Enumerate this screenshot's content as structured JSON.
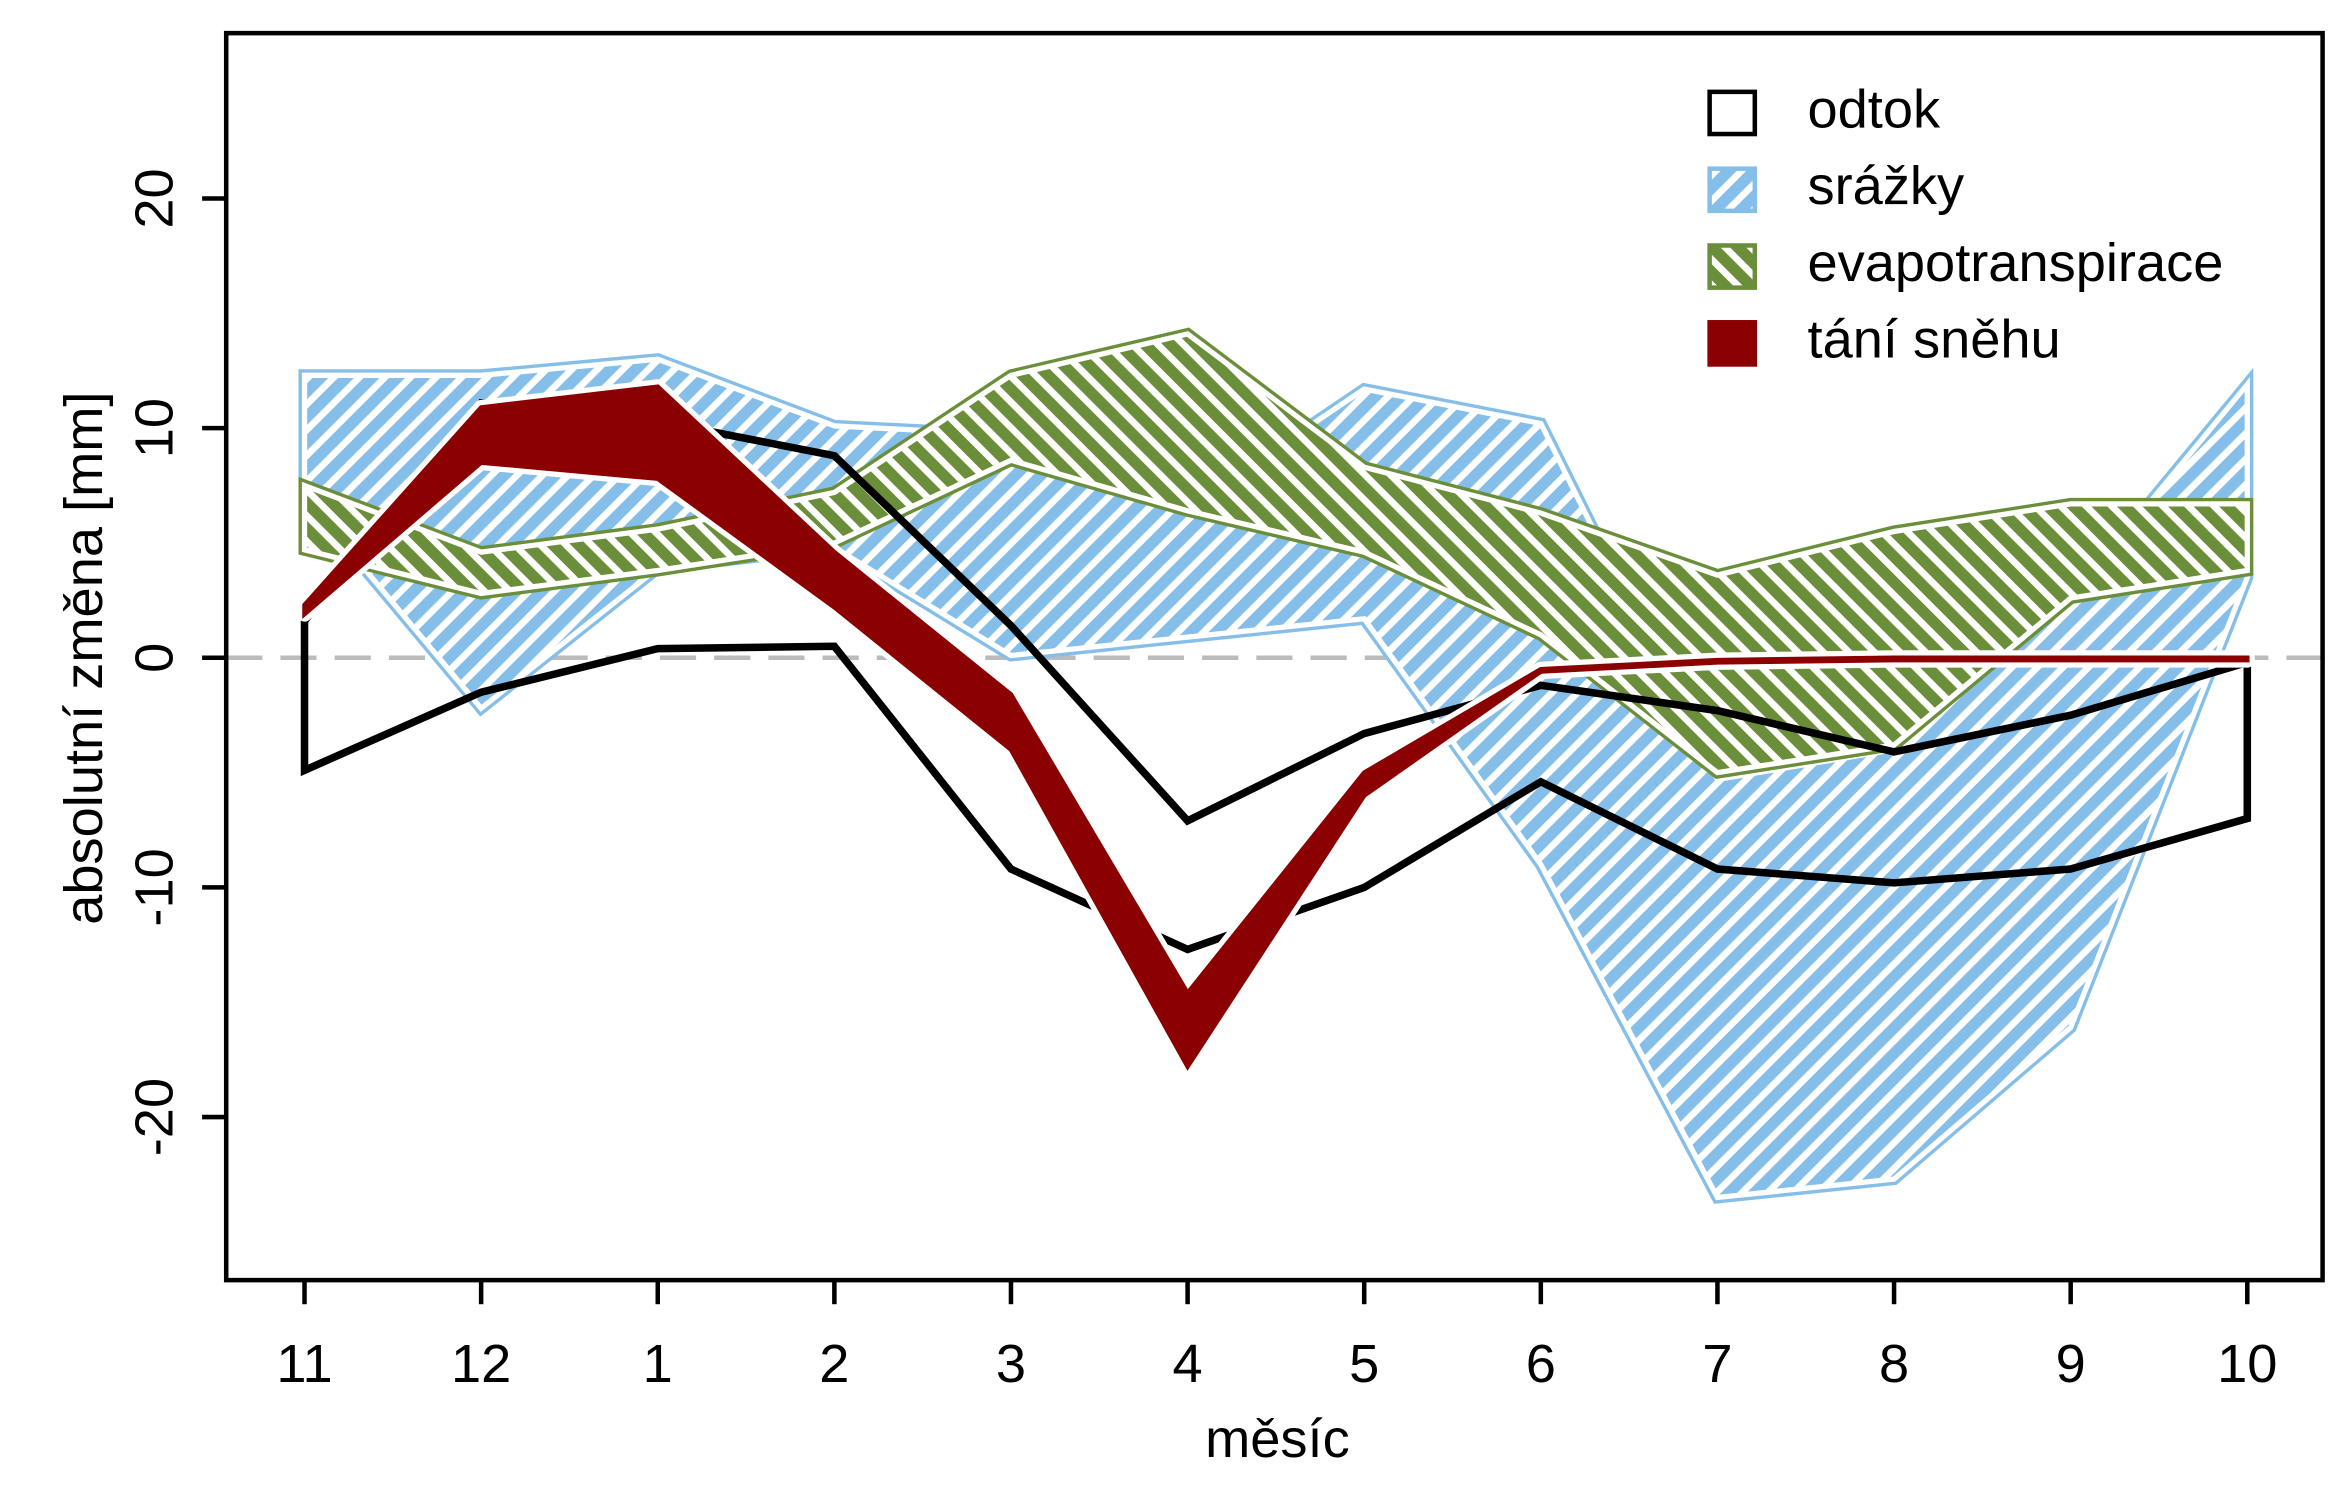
{
  "chart_data": {
    "type": "band",
    "x_label": "měsíc",
    "y_label": "absolutní změna [mm]",
    "categories": [
      "11",
      "12",
      "1",
      "2",
      "3",
      "4",
      "5",
      "6",
      "7",
      "8",
      "9",
      "10"
    ],
    "ylim": [
      -27.1,
      27.2
    ],
    "yticks": [
      -20,
      -10,
      0,
      10,
      20
    ],
    "reference_line": {
      "value": 0,
      "color": "#bbbbbb",
      "dashed": true
    },
    "legend": "top-right",
    "series": [
      {
        "name": "odtok",
        "color": "#000000",
        "pattern": "none",
        "upper": [
          1.6,
          11.1,
          10.3,
          8.8,
          1.4,
          -7.1,
          -3.3,
          -1.2,
          -2.3,
          -4.1,
          -2.5,
          -0.2
        ],
        "lower": [
          -4.9,
          -1.5,
          0.4,
          0.5,
          -9.2,
          -12.7,
          -10.0,
          -5.4,
          -9.2,
          -9.8,
          -9.2,
          -7.0
        ]
      },
      {
        "name": "srážky",
        "color": "#85bfe9",
        "pattern": "hatch-right",
        "upper": [
          12.3,
          12.3,
          13.0,
          10.1,
          9.7,
          6.5,
          11.7,
          10.2,
          -5.3,
          -4.0,
          2.6,
          11.9
        ],
        "lower": [
          7.0,
          -2.2,
          3.9,
          4.8,
          0.1,
          0.9,
          1.7,
          -9.0,
          -23.5,
          -22.7,
          -16.1,
          3.5
        ]
      },
      {
        "name": "evapotranspirace",
        "color": "#6b8e3a",
        "pattern": "hatch-left",
        "upper": [
          7.5,
          4.6,
          5.6,
          7.2,
          12.3,
          14.1,
          8.3,
          6.3,
          3.6,
          5.5,
          6.7,
          6.7
        ],
        "lower": [
          4.7,
          2.8,
          3.8,
          5.0,
          8.6,
          6.4,
          4.6,
          1.0,
          -5.0,
          -3.8,
          2.6,
          3.8
        ]
      },
      {
        "name": "tání sněhu",
        "color": "#8b0000",
        "pattern": "solid",
        "upper": [
          2.3,
          10.9,
          11.8,
          4.6,
          -1.6,
          -14.6,
          -5.0,
          -0.5,
          -0.1,
          0.0,
          0.0,
          0.0
        ],
        "lower": [
          1.9,
          8.5,
          7.8,
          2.2,
          -4.0,
          -17.8,
          -6.0,
          -0.6,
          -0.2,
          -0.1,
          -0.1,
          -0.1
        ]
      }
    ]
  }
}
